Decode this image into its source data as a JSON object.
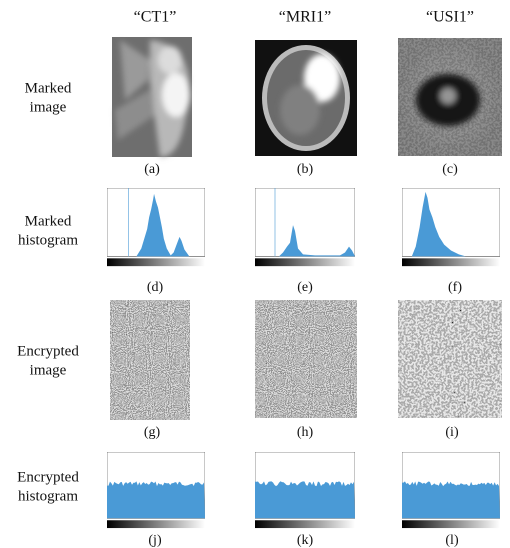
{
  "columns": [
    "“CT1”",
    "“MRI1”",
    "“USI1”"
  ],
  "rows": [
    {
      "label": [
        "Marked",
        "image"
      ]
    },
    {
      "label": [
        "Marked",
        "histogram"
      ]
    },
    {
      "label": [
        "Encrypted",
        "image"
      ]
    },
    {
      "label": [
        "Encrypted",
        "histogram"
      ]
    }
  ],
  "captions": [
    "(a)",
    "(b)",
    "(c)",
    "(d)",
    "(e)",
    "(f)",
    "(g)",
    "(h)",
    "(i)",
    "(j)",
    "(k)",
    "(l)"
  ]
}
